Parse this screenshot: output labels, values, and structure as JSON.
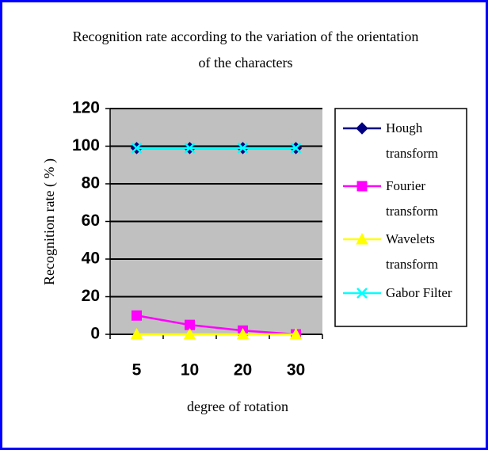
{
  "chart_data": {
    "type": "line",
    "title": "Recognition rate  according to the variation of the orientation of the characters",
    "x_label": "degree of rotation",
    "y_label": "Recognition rate ( % )",
    "categories": [
      "5",
      "10",
      "20",
      "30"
    ],
    "series": [
      {
        "name": "Hough transform",
        "color": "#000080",
        "marker": "diamond",
        "values": [
          99,
          99,
          99,
          99
        ]
      },
      {
        "name": "Fourier transform",
        "color": "#ff00ff",
        "marker": "square",
        "values": [
          10,
          5,
          2,
          0
        ]
      },
      {
        "name": "Wavelets transform",
        "color": "#ffff00",
        "marker": "triangle",
        "values": [
          0,
          0,
          0,
          0
        ]
      },
      {
        "name": "Gabor Filter",
        "color": "#00ffff",
        "marker": "x",
        "values": [
          99,
          99,
          99,
          99
        ]
      }
    ],
    "ylim": [
      0,
      120
    ],
    "yticks": [
      0,
      20,
      40,
      60,
      80,
      100,
      120
    ],
    "grid": true,
    "legend": "right"
  }
}
